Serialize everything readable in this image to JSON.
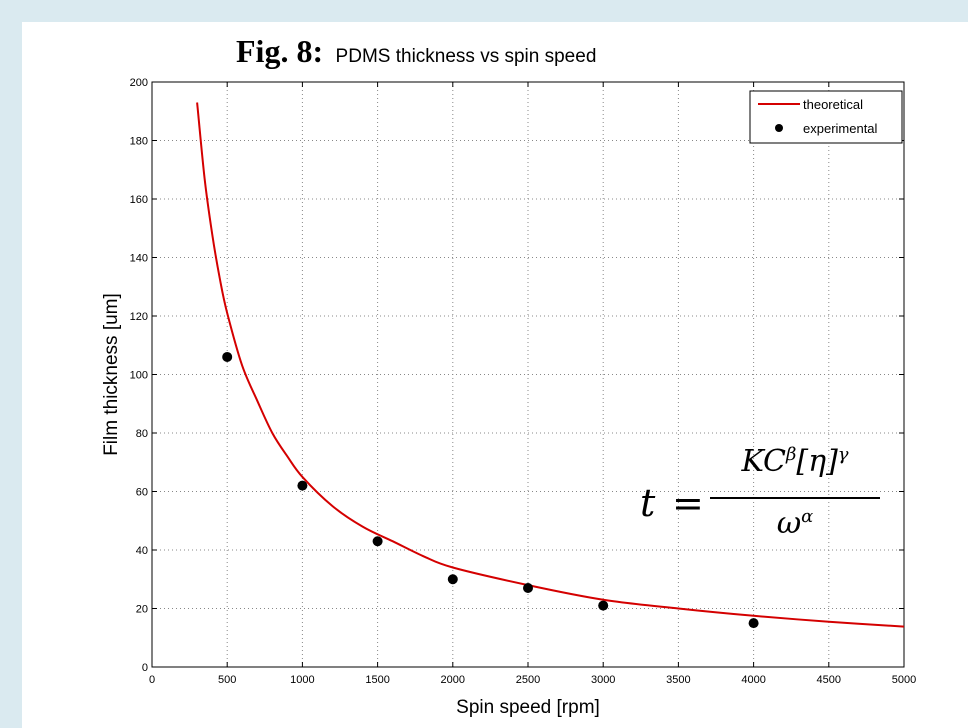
{
  "figure": {
    "label": "Fig. 8:",
    "caption": "PDMS thickness vs spin speed"
  },
  "colors": {
    "background": "#daeaf0",
    "theoretical": "#d40000",
    "experimental": "#000000",
    "grid": "#888888"
  },
  "formula": {
    "lhs": "t",
    "equals": "=",
    "numerator": "KC^β[η]^γ",
    "denominator": "ω^α"
  },
  "chart_data": {
    "type": "line",
    "xlabel": "Spin speed [rpm]",
    "ylabel": "Film thickness [um]",
    "xlim": [
      0,
      5000
    ],
    "ylim": [
      0,
      200
    ],
    "xticks": [
      0,
      500,
      1000,
      1500,
      2000,
      2500,
      3000,
      3500,
      4000,
      4500,
      5000
    ],
    "yticks": [
      0,
      20,
      40,
      60,
      80,
      100,
      120,
      140,
      160,
      180,
      200
    ],
    "grid": true,
    "legend_position": "top-right",
    "series": [
      {
        "name": "theoretical",
        "style": "line",
        "x": [
          300,
          350,
          400,
          450,
          500,
          600,
          700,
          800,
          900,
          1000,
          1200,
          1400,
          1600,
          1800,
          2000,
          2500,
          3000,
          3500,
          4000,
          4500,
          5000
        ],
        "y": [
          193,
          167,
          148,
          133,
          121,
          103,
          91,
          80,
          72,
          65,
          55,
          48,
          43,
          38,
          34,
          28,
          23,
          20,
          17.5,
          15.5,
          13.8
        ]
      },
      {
        "name": "experimental",
        "style": "marker",
        "x": [
          500,
          1000,
          1500,
          2000,
          2500,
          3000,
          4000
        ],
        "y": [
          106,
          62,
          43,
          30,
          27,
          21,
          15
        ]
      }
    ]
  }
}
